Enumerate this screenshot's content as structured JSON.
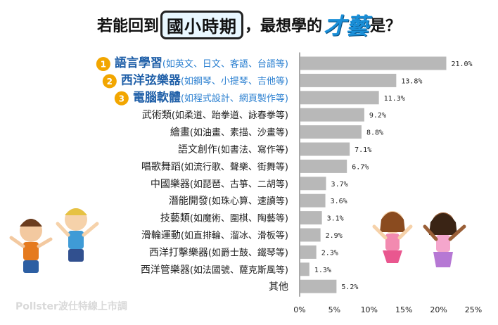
{
  "title": {
    "part1": "若能回到",
    "part2": "國小時期",
    "part3": "，最想學的",
    "part4": "才藝",
    "part5": "是？"
  },
  "source_text": "Pollster波仕特線上市調",
  "colors": {
    "bar": "#b8b8b8",
    "top_label": "#1f5fa8",
    "top_sub": "#2a7fd0",
    "badge": "#f2a600",
    "text": "#222222"
  },
  "chart_data": {
    "type": "bar",
    "orientation": "horizontal",
    "title": "若能回到國小時期，最想學的才藝是？",
    "xlim": [
      0,
      25
    ],
    "xticks": [
      "0%",
      "5%",
      "10%",
      "15%",
      "20%",
      "25%"
    ],
    "grid": false,
    "categories": [
      {
        "rank": "1",
        "main": "語言學習",
        "sub": "(如英文、日文、客語、台語等)"
      },
      {
        "rank": "2",
        "main": "西洋弦樂器",
        "sub": "(如鋼琴、小提琴、吉他等)"
      },
      {
        "rank": "3",
        "main": "電腦軟體",
        "sub": "(如程式設計、網頁製作等)"
      },
      {
        "rank": "",
        "main": "武術類",
        "sub": "(如柔道、跆拳道、詠春拳等)"
      },
      {
        "rank": "",
        "main": "繪畫",
        "sub": "(如油畫、素描、沙畫等)"
      },
      {
        "rank": "",
        "main": "語文創作",
        "sub": "(如書法、寫作等)"
      },
      {
        "rank": "",
        "main": "唱歌舞蹈",
        "sub": "(如流行歌、聲樂、街舞等)"
      },
      {
        "rank": "",
        "main": "中國樂器",
        "sub": "(如琵琶、古箏、二胡等)"
      },
      {
        "rank": "",
        "main": "潛能開發",
        "sub": "(如珠心算、速讀等)"
      },
      {
        "rank": "",
        "main": "技藝類",
        "sub": "(如魔術、圍棋、陶藝等)"
      },
      {
        "rank": "",
        "main": "滑輪運動",
        "sub": "(如直排輪、溜冰、滑板等)"
      },
      {
        "rank": "",
        "main": "西洋打擊樂器",
        "sub": "(如爵士鼓、鐵琴等)"
      },
      {
        "rank": "",
        "main": "西洋管樂器",
        "sub": "(如法國號、薩克斯風等)"
      },
      {
        "rank": "",
        "main": "其他",
        "sub": ""
      }
    ],
    "values": [
      21.0,
      13.8,
      11.3,
      9.2,
      8.8,
      7.1,
      6.7,
      3.7,
      3.6,
      3.1,
      2.9,
      2.3,
      1.3,
      5.2
    ],
    "value_labels": [
      "21.0%",
      "13.8%",
      "11.3%",
      "9.2%",
      "8.8%",
      "7.1%",
      "6.7%",
      "3.7%",
      "3.6%",
      "3.1%",
      "2.9%",
      "2.3%",
      "1.3%",
      "5.2%"
    ]
  }
}
